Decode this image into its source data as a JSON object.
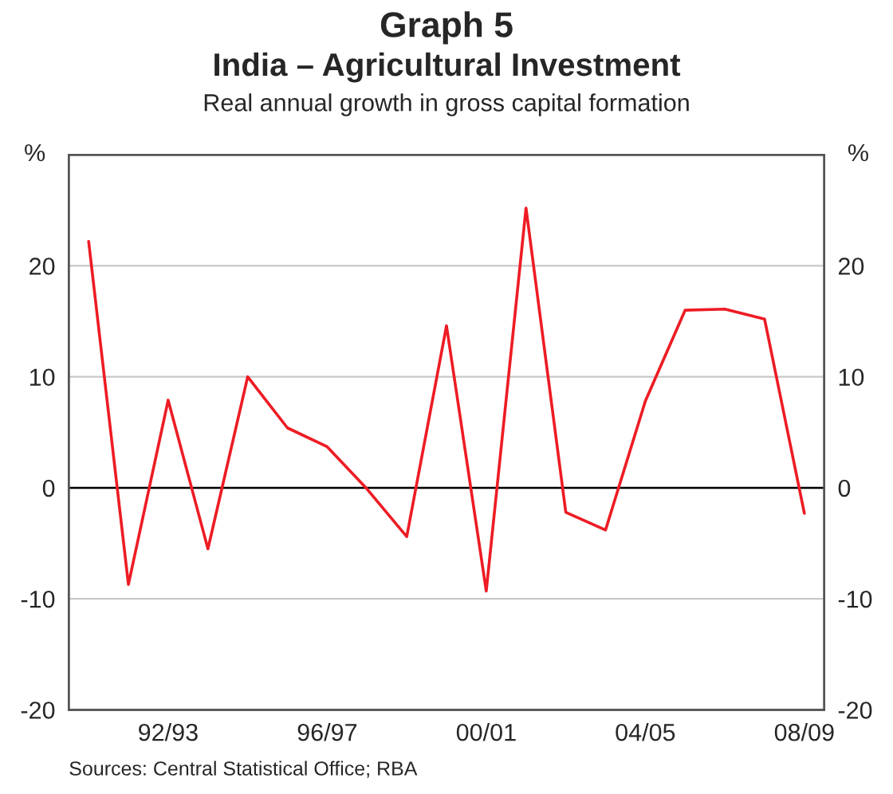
{
  "chart_data": {
    "type": "line",
    "title": "Graph 5\nIndia – Agricultural Investment",
    "subtitle": "Real annual growth in gross capital formation",
    "ylabel": "%",
    "y2label": "%",
    "categories": [
      null,
      null,
      "92/93",
      null,
      null,
      null,
      "96/97",
      null,
      null,
      null,
      "00/01",
      null,
      null,
      null,
      "04/05",
      null,
      null,
      null,
      "08/09"
    ],
    "series": [
      {
        "color": "#ed1c24",
        "values": [
          22.2,
          -8.7,
          7.9,
          -5.5,
          10.0,
          5.4,
          3.7,
          -0.1,
          -4.4,
          14.6,
          -9.3,
          25.2,
          -2.2,
          -3.8,
          7.8,
          16.0,
          16.1,
          15.2,
          -2.3
        ]
      }
    ],
    "ylim": [
      -20,
      30
    ],
    "yticks": [
      -20,
      -10,
      0,
      10,
      20
    ],
    "y2lim": [
      -20,
      30
    ],
    "y2ticks": [
      -20,
      -10,
      0,
      10,
      20
    ],
    "grid": "y",
    "marker": "none",
    "line_style": "solid",
    "legend": false,
    "ref_lines": [
      {
        "axis": "y",
        "value": 0,
        "color": "#000000"
      }
    ],
    "annotations": [
      "Sources: Central Statistical Office; RBA"
    ]
  }
}
